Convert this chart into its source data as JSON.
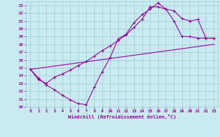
{
  "xlabel": "Windchill (Refroidissement éolien,°C)",
  "xlim": [
    -0.5,
    23.5
  ],
  "ylim": [
    10,
    23.5
  ],
  "xticks": [
    0,
    1,
    2,
    3,
    4,
    5,
    6,
    7,
    8,
    9,
    10,
    11,
    12,
    13,
    14,
    15,
    16,
    17,
    18,
    19,
    20,
    21,
    22,
    23
  ],
  "yticks": [
    10,
    11,
    12,
    13,
    14,
    15,
    16,
    17,
    18,
    19,
    20,
    21,
    22,
    23
  ],
  "bg_color": "#c8eaf0",
  "grid_color": "#9ec8d2",
  "line_color": "#990099",
  "line1_x": [
    0,
    1,
    2,
    3,
    4,
    5,
    6,
    7,
    8,
    9,
    10,
    11,
    12,
    13,
    14,
    15,
    16,
    17,
    18,
    19,
    20,
    21,
    22,
    23
  ],
  "line1_y": [
    14.8,
    13.7,
    12.8,
    12.2,
    11.5,
    10.9,
    10.4,
    10.3,
    12.5,
    14.5,
    16.3,
    18.7,
    19.3,
    20.8,
    21.8,
    22.5,
    23.3,
    22.5,
    21.0,
    19.0,
    19.0,
    18.8,
    18.8,
    18.8
  ],
  "line2_x": [
    0,
    1,
    2,
    3,
    4,
    5,
    6,
    7,
    8,
    9,
    10,
    11,
    12,
    13,
    14,
    15,
    16,
    17,
    18,
    19,
    20,
    21,
    22,
    23
  ],
  "line2_y": [
    14.8,
    13.5,
    13.0,
    13.8,
    14.2,
    14.7,
    15.3,
    15.8,
    16.5,
    17.2,
    17.8,
    18.5,
    19.2,
    20.2,
    21.2,
    22.8,
    22.8,
    22.5,
    22.3,
    21.3,
    21.0,
    21.2,
    18.8,
    18.8
  ],
  "line3_x": [
    0,
    23
  ],
  "line3_y": [
    14.8,
    18.0
  ]
}
